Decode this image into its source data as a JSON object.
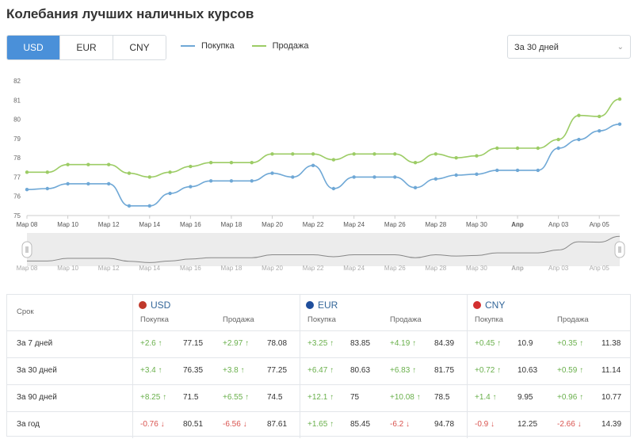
{
  "title": "Колебания лучших наличных курсов",
  "currency_tabs": [
    {
      "label": "USD",
      "active": true
    },
    {
      "label": "EUR",
      "active": false
    },
    {
      "label": "CNY",
      "active": false
    }
  ],
  "legend": {
    "buy": "Покупка",
    "sell": "Продажа"
  },
  "period_select": {
    "value": "За 30 дней"
  },
  "colors": {
    "buy": "#6fa8d6",
    "sell": "#9ccc65",
    "active_tab": "#4a90d9",
    "positive": "#6ab04c",
    "negative": "#d9534f"
  },
  "chart_data": {
    "type": "line",
    "title": "",
    "xlabel": "",
    "ylabel": "",
    "ylim": [
      75,
      82
    ],
    "y_ticks": [
      75,
      76,
      77,
      78,
      79,
      80,
      81,
      82
    ],
    "x": [
      "Мар 08",
      "Мар 09",
      "Мар 10",
      "Мар 11",
      "Мар 12",
      "Мар 13",
      "Мар 14",
      "Мар 15",
      "Мар 16",
      "Мар 17",
      "Мар 18",
      "Мар 19",
      "Мар 20",
      "Мар 21",
      "Мар 22",
      "Мар 23",
      "Мар 24",
      "Мар 25",
      "Мар 26",
      "Мар 27",
      "Мар 28",
      "Мар 29",
      "Мар 30",
      "Мар 31",
      "Апр",
      "Апр 02",
      "Апр 03",
      "Апр 04",
      "Апр 05",
      "Апр 06"
    ],
    "x_tick_labels": [
      "Мар 08",
      "Мар 10",
      "Мар 12",
      "Мар 14",
      "Мар 16",
      "Мар 18",
      "Мар 20",
      "Мар 22",
      "Мар 24",
      "Мар 26",
      "Мар 28",
      "Мар 30",
      "Апр",
      "Апр 03",
      "Апр 05"
    ],
    "grid": false,
    "series": [
      {
        "name": "Покупка",
        "values": [
          76.35,
          76.4,
          76.65,
          76.65,
          76.65,
          75.5,
          75.5,
          76.15,
          76.5,
          76.8,
          76.8,
          76.8,
          77.2,
          77.0,
          77.6,
          76.4,
          77.0,
          77.0,
          77.0,
          76.45,
          76.9,
          77.1,
          77.15,
          77.35,
          77.35,
          77.35,
          78.5,
          78.95,
          79.4,
          79.75
        ]
      },
      {
        "name": "Продажа",
        "values": [
          77.25,
          77.25,
          77.65,
          77.65,
          77.65,
          77.2,
          77.0,
          77.25,
          77.55,
          77.75,
          77.75,
          77.75,
          78.2,
          78.2,
          78.2,
          77.9,
          78.2,
          78.2,
          78.2,
          77.75,
          78.2,
          78.0,
          78.1,
          78.5,
          78.5,
          78.5,
          78.95,
          80.2,
          80.15,
          81.05
        ]
      }
    ]
  },
  "table": {
    "period_header": "Срок",
    "buy_label": "Покупка",
    "sell_label": "Продажа",
    "currencies": [
      {
        "code": "USD",
        "flag_color": "#c0392b"
      },
      {
        "code": "EUR",
        "flag_color": "#1f4e9c"
      },
      {
        "code": "CNY",
        "flag_color": "#d32f2f"
      }
    ],
    "rows": [
      {
        "period": "За 7 дней",
        "cells": [
          {
            "buy_change": "+2.6 ↑",
            "buy_sign": "pos",
            "buy_value": "77.15",
            "sell_change": "+2.97 ↑",
            "sell_sign": "pos",
            "sell_value": "78.08"
          },
          {
            "buy_change": "+3.25 ↑",
            "buy_sign": "pos",
            "buy_value": "83.85",
            "sell_change": "+4.19 ↑",
            "sell_sign": "pos",
            "sell_value": "84.39"
          },
          {
            "buy_change": "+0.45 ↑",
            "buy_sign": "pos",
            "buy_value": "10.9",
            "sell_change": "+0.35 ↑",
            "sell_sign": "pos",
            "sell_value": "11.38"
          }
        ]
      },
      {
        "period": "За 30 дней",
        "cells": [
          {
            "buy_change": "+3.4 ↑",
            "buy_sign": "pos",
            "buy_value": "76.35",
            "sell_change": "+3.8 ↑",
            "sell_sign": "pos",
            "sell_value": "77.25"
          },
          {
            "buy_change": "+6.47 ↑",
            "buy_sign": "pos",
            "buy_value": "80.63",
            "sell_change": "+6.83 ↑",
            "sell_sign": "pos",
            "sell_value": "81.75"
          },
          {
            "buy_change": "+0.72 ↑",
            "buy_sign": "pos",
            "buy_value": "10.63",
            "sell_change": "+0.59 ↑",
            "sell_sign": "pos",
            "sell_value": "11.14"
          }
        ]
      },
      {
        "period": "За 90 дней",
        "cells": [
          {
            "buy_change": "+8.25 ↑",
            "buy_sign": "pos",
            "buy_value": "71.5",
            "sell_change": "+6.55 ↑",
            "sell_sign": "pos",
            "sell_value": "74.5"
          },
          {
            "buy_change": "+12.1 ↑",
            "buy_sign": "pos",
            "buy_value": "75",
            "sell_change": "+10.08 ↑",
            "sell_sign": "pos",
            "sell_value": "78.5"
          },
          {
            "buy_change": "+1.4 ↑",
            "buy_sign": "pos",
            "buy_value": "9.95",
            "sell_change": "+0.96 ↑",
            "sell_sign": "pos",
            "sell_value": "10.77"
          }
        ]
      },
      {
        "period": "За год",
        "cells": [
          {
            "buy_change": "-0.76 ↓",
            "buy_sign": "neg",
            "buy_value": "80.51",
            "sell_change": "-6.56 ↓",
            "sell_sign": "neg",
            "sell_value": "87.61"
          },
          {
            "buy_change": "+1.65 ↑",
            "buy_sign": "pos",
            "buy_value": "85.45",
            "sell_change": "-6.2 ↓",
            "sell_sign": "neg",
            "sell_value": "94.78"
          },
          {
            "buy_change": "-0.9 ↓",
            "buy_sign": "neg",
            "buy_value": "12.25",
            "sell_change": "-2.66 ↓",
            "sell_sign": "neg",
            "sell_value": "14.39"
          }
        ]
      }
    ]
  }
}
